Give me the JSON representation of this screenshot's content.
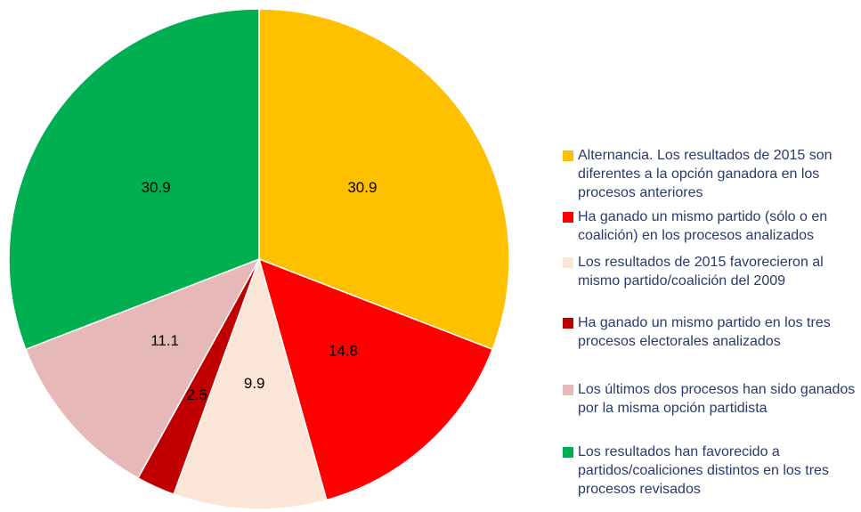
{
  "chart_data": {
    "type": "pie",
    "categories": [
      "Alternancia. Los resultados de 2015 son diferentes a la opción ganadora en los procesos anteriores",
      "Ha ganado un mismo partido (sólo o en coalición) en los procesos analizados",
      "Los resultados de 2015 favorecieron al mismo partido/coalición del 2009",
      "Ha ganado un mismo partido en los tres procesos electorales analizados",
      "Los últimos dos procesos han sido ganados por la misma opción partidista",
      "Los resultados han favorecido a partidos/coaliciones distintos en los tres procesos revisados"
    ],
    "values": [
      30.9,
      14.8,
      9.9,
      2.5,
      11.1,
      30.9
    ],
    "colors": [
      "#FFC000",
      "#FF0000",
      "#FBE5D6",
      "#C00000",
      "#E6B9B8",
      "#00B050"
    ],
    "legend": "right"
  }
}
